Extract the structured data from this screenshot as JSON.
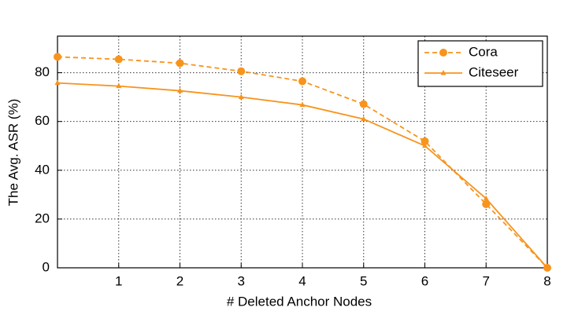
{
  "chart_data": {
    "type": "line",
    "x_label": "# Deleted Anchor Nodes",
    "y_label": "The Avg. ASR (%)",
    "x": [
      0,
      1,
      2,
      3,
      4,
      5,
      6,
      7,
      8
    ],
    "series": [
      {
        "name": "Cora",
        "color": "#f7941d",
        "dash": true,
        "marker": "circle",
        "values": [
          86.5,
          85.5,
          83.9,
          80.6,
          76.5,
          67.1,
          51.9,
          26.1,
          0
        ]
      },
      {
        "name": "Citeseer",
        "color": "#f7941d",
        "dash": false,
        "marker": "triangle",
        "values": [
          75.8,
          74.5,
          72.6,
          70.0,
          66.8,
          61.0,
          50.0,
          28.4,
          0
        ]
      }
    ],
    "xlim": [
      0,
      8
    ],
    "xticks": [
      1,
      2,
      3,
      4,
      5,
      6,
      7,
      8
    ],
    "ylim": [
      0,
      95
    ],
    "yticks": [
      0,
      20,
      40,
      60,
      80
    ],
    "grid": true,
    "legend": "upper-right"
  }
}
